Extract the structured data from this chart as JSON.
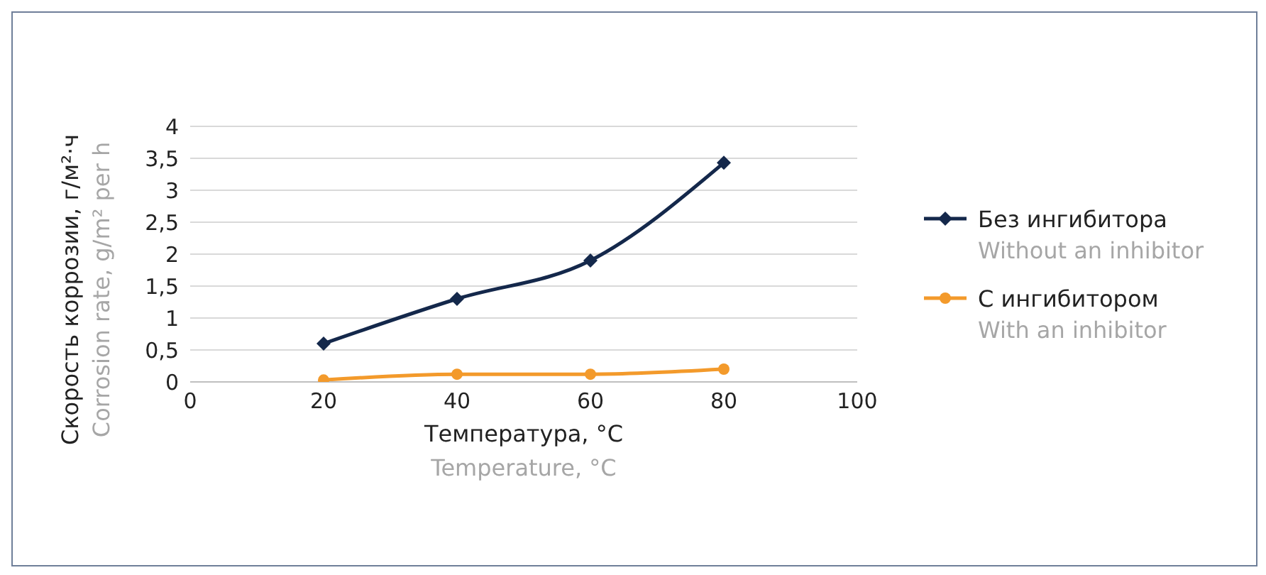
{
  "chart_data": {
    "type": "line",
    "xlabel": "Температура, °C\nTemperature, °C",
    "ylabel": "Скорость коррозии, г/м²·ч\nCorrosion rate, g/m² per h",
    "x": [
      20,
      40,
      60,
      80
    ],
    "series": [
      {
        "name": "Без ингибитора\nWithout an inhibitor",
        "color": "#14284b",
        "marker": "diamond",
        "values": [
          0.6,
          1.3,
          1.9,
          3.43
        ]
      },
      {
        "name": "С ингибитором\nWith an inhibitor",
        "color": "#f39a2b",
        "marker": "circle",
        "values": [
          0.03,
          0.12,
          0.12,
          0.2
        ]
      }
    ],
    "xlim": [
      0,
      100
    ],
    "xticks": [
      0,
      20,
      40,
      60,
      80,
      100
    ],
    "ylim": [
      0,
      4
    ],
    "yticks": [
      0,
      {
        "value": 0.5,
        "label": "0,5"
      },
      1,
      {
        "value": 1.5,
        "label": "1,5"
      },
      2,
      {
        "value": 2.5,
        "label": "2,5"
      },
      3,
      {
        "value": 3.5,
        "label": "3,5"
      },
      4
    ],
    "grid": "y",
    "legend": "right"
  }
}
